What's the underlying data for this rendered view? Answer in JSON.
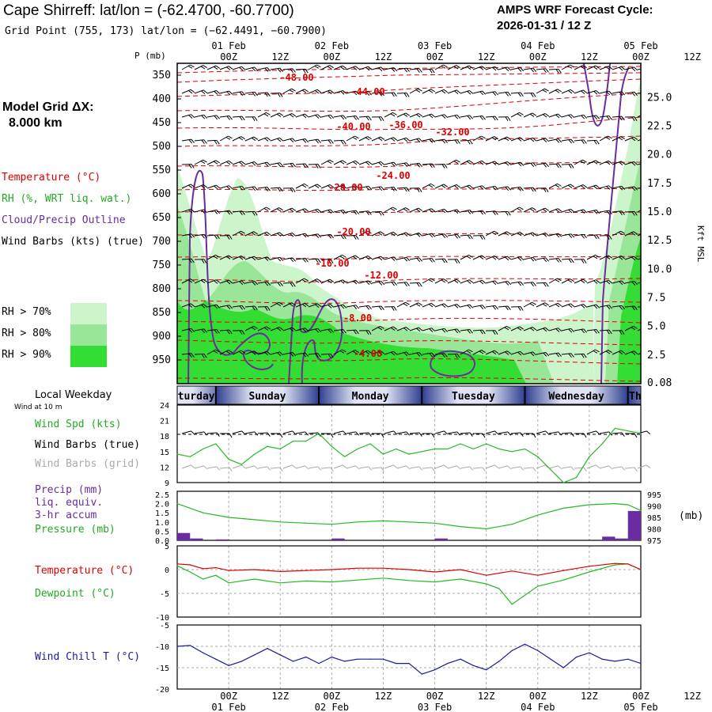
{
  "header": {
    "title": "Cape Shirreff:  lat/lon = (-62.4700, -60.7700)",
    "subtitle": "Grid Point (755, 173) lat/lon = (−62.4491, −60.7900)",
    "cycle_line1": "AMPS WRF Forecast Cycle:",
    "cycle_line2": "2026-01-31 / 12  Z"
  },
  "time_axis": {
    "top_dates": [
      "01 Feb",
      "02 Feb",
      "03 Feb",
      "04 Feb",
      "05 Feb"
    ],
    "hour_labels": [
      "00Z",
      "12Z",
      "00Z",
      "12Z",
      "00Z",
      "12Z",
      "00Z",
      "12Z",
      "00Z",
      "12Z"
    ],
    "bottom_dates": [
      "01 Feb",
      "02 Feb",
      "03 Feb",
      "04 Feb",
      "05 Feb"
    ]
  },
  "side_legend": {
    "grid_label": "Model Grid ΔX:",
    "grid_value": "8.000 km",
    "temperature": "Temperature (°C)",
    "rh": "RH (%, WRT liq. wat.)",
    "cloud": "Cloud/Precip Outline",
    "wind": "Wind Barbs (kts) (true)",
    "rh_levels": [
      "RH > 70%",
      "RH > 80%",
      "RH > 90%"
    ],
    "colors": {
      "temperature": "#dd0000",
      "rh": "#22bb22",
      "cloud": "#6a2c9e",
      "wind": "#000000",
      "rh70": "#ccf5cc",
      "rh80": "#99e699",
      "rh90": "#33dd33"
    }
  },
  "chart_data": [
    {
      "type": "heatmap",
      "name": "cross-section",
      "left_axis_label": "P (mb)",
      "pressure_ticks": [
        350,
        400,
        450,
        500,
        550,
        600,
        650,
        700,
        750,
        800,
        850,
        900,
        950
      ],
      "right_axis_label": "Kft MSL",
      "height_ticks": [
        "25.0",
        "22.5",
        "20.0",
        "17.5",
        "15.0",
        "12.5",
        "10.0",
        "7.5",
        "5.0",
        "2.5",
        "0.08"
      ],
      "temperature_contour_labels": [
        "-48.00",
        "-44.00",
        "-40.00",
        "-36.00",
        "-32.00",
        "-28.00",
        "-24.00",
        "-20.00",
        "-16.00",
        "-12.00",
        "-8.00",
        "-4.00"
      ]
    },
    {
      "type": "table",
      "name": "weekday-bar",
      "label": "Local Weekday",
      "days": [
        "Saturday",
        "Sunday",
        "Monday",
        "Tuesday",
        "Wednesday",
        "Th"
      ]
    },
    {
      "type": "line",
      "name": "wind",
      "label_top": "Wind at 10 m",
      "labels": [
        "Wind Spd (kts)",
        "Wind Barbs (true)",
        "Wind Barbs (grid)"
      ],
      "y_ticks": [
        24,
        21,
        18,
        15,
        12,
        9
      ],
      "ylim": [
        9,
        24
      ],
      "series": [
        {
          "name": "Wind Spd (kts)",
          "x": [
            0,
            3,
            6,
            9,
            12,
            15,
            18,
            21,
            24,
            27,
            30,
            33,
            36,
            39,
            42,
            45,
            48,
            51,
            54,
            57,
            60,
            63,
            66,
            69,
            72,
            75,
            78,
            81,
            84,
            87,
            90,
            93,
            96,
            99,
            102,
            105,
            108
          ],
          "values": [
            14.5,
            14,
            15.5,
            16.5,
            13.5,
            12.5,
            14.5,
            16,
            15.5,
            17,
            17,
            18.5,
            16,
            14,
            15.5,
            16.5,
            14.5,
            15.5,
            14.5,
            15,
            15.5,
            15.5,
            16.5,
            15.5,
            16.5,
            15.5,
            15,
            15.5,
            14,
            11.5,
            9,
            10,
            14,
            16.5,
            19.5,
            19,
            18.5
          ]
        }
      ]
    },
    {
      "type": "bar",
      "name": "precip-pressure",
      "labels": [
        "Precip (mm)",
        "liq. equiv.",
        "3-hr accum",
        "Pressure (mb)"
      ],
      "left_ticks": [
        "2.5",
        "2.0",
        "1.5",
        "1.0",
        "0.5",
        "0.0"
      ],
      "right_ticks": [
        995,
        990,
        985,
        980,
        975
      ],
      "right_unit": "(mb)",
      "precip": {
        "x": [
          0,
          3,
          9,
          36,
          60,
          99,
          102,
          105
        ],
        "values": [
          0.4,
          0.1,
          0.05,
          0.1,
          0.1,
          0.2,
          0.1,
          1.6
        ]
      },
      "pressure": {
        "x": [
          0,
          6,
          12,
          18,
          24,
          30,
          36,
          42,
          48,
          54,
          60,
          66,
          72,
          78,
          84,
          90,
          96,
          102,
          105,
          108
        ],
        "values": [
          991,
          987,
          985,
          984,
          983,
          982.5,
          982,
          983,
          983.5,
          983,
          982.5,
          981,
          980,
          982,
          986,
          989,
          990.5,
          991,
          990.5,
          988
        ]
      }
    },
    {
      "type": "line",
      "name": "temperature-dewpoint",
      "labels": [
        "Temperature (°C)",
        "Dewpoint (°C)"
      ],
      "y_ticks": [
        5,
        0,
        -5,
        -10
      ],
      "ylim": [
        -10,
        5
      ],
      "series": [
        {
          "name": "Temperature (°C)",
          "x": [
            0,
            3,
            6,
            9,
            12,
            18,
            24,
            30,
            36,
            42,
            48,
            54,
            60,
            66,
            72,
            78,
            84,
            90,
            96,
            102,
            105,
            108
          ],
          "values": [
            1.2,
            1,
            0.2,
            0.4,
            -0.2,
            0,
            -0.4,
            -0.2,
            0,
            0.3,
            0.3,
            0,
            -0.5,
            0,
            -1.2,
            -0.3,
            -1.2,
            -0.2,
            0.7,
            1.3,
            1.2,
            0
          ]
        },
        {
          "name": "Dewpoint (°C)",
          "x": [
            0,
            3,
            6,
            9,
            12,
            18,
            24,
            30,
            36,
            42,
            48,
            54,
            60,
            66,
            72,
            75,
            78,
            84,
            90,
            96,
            102,
            105,
            108
          ],
          "values": [
            0.8,
            -0.5,
            -2,
            -1.2,
            -2.8,
            -2,
            -2.8,
            -2.4,
            -2.6,
            -2.2,
            -1.8,
            -2.3,
            -2.6,
            -2,
            -3,
            -4,
            -7.3,
            -3.5,
            -2.2,
            -0.5,
            1,
            1.2,
            0
          ]
        }
      ]
    },
    {
      "type": "line",
      "name": "wind-chill",
      "labels": [
        "Wind Chill T (°C)"
      ],
      "y_ticks": [
        -5,
        -10,
        -15,
        -20
      ],
      "ylim": [
        -20,
        -5
      ],
      "series": [
        {
          "name": "Wind Chill T (°C)",
          "x": [
            0,
            3,
            6,
            9,
            12,
            15,
            18,
            21,
            24,
            27,
            30,
            33,
            36,
            39,
            42,
            45,
            48,
            51,
            54,
            57,
            60,
            63,
            66,
            69,
            72,
            75,
            78,
            81,
            84,
            87,
            90,
            93,
            96,
            99,
            102,
            105,
            108
          ],
          "values": [
            -10,
            -9.8,
            -11.5,
            -13,
            -14.5,
            -13.5,
            -12,
            -10.5,
            -12,
            -13.5,
            -12.5,
            -14,
            -12.5,
            -13.5,
            -13,
            -13,
            -13,
            -14,
            -14,
            -16.5,
            -15.5,
            -14,
            -13,
            -14.5,
            -15.5,
            -13.5,
            -11,
            -9.5,
            -11,
            -13,
            -15,
            -12.5,
            -11.5,
            -13,
            -13.5,
            -13,
            -14
          ]
        }
      ]
    }
  ]
}
